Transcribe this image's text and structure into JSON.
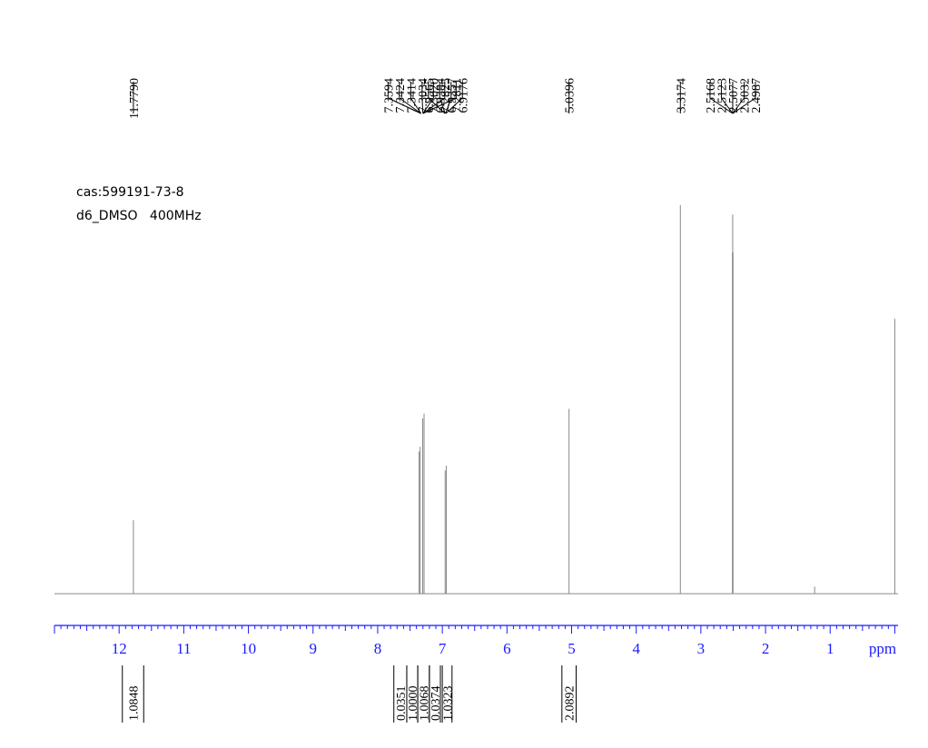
{
  "sample_info": {
    "line1": "cas:599191-73-8",
    "line2": "d6_DMSO   400MHz"
  },
  "chart_data": {
    "type": "line",
    "title": "",
    "xlabel": "ppm",
    "ylabel": "",
    "x_reversed": true,
    "xlim": [
      13.0,
      -0.05
    ],
    "x_ticks": [
      12,
      11,
      10,
      9,
      8,
      7,
      6,
      5,
      4,
      3,
      2,
      1
    ],
    "x_tick_labels": [
      "12",
      "11",
      "10",
      "9",
      "8",
      "7",
      "6",
      "5",
      "4",
      "3",
      "2",
      "1"
    ],
    "y_range": [
      0,
      1
    ],
    "grid": false,
    "colors": {
      "spectrum": "#888888",
      "axis": "#1a1aff",
      "labels": "#000000"
    },
    "peaks": [
      {
        "ppm": 11.779,
        "height": 0.155
      },
      {
        "ppm": 7.3594,
        "height": 0.3
      },
      {
        "ppm": 7.3424,
        "height": 0.31
      },
      {
        "ppm": 7.3034,
        "height": 0.37
      },
      {
        "ppm": 7.2825,
        "height": 0.38
      },
      {
        "ppm": 6.9565,
        "height": 0.26
      },
      {
        "ppm": 6.9384,
        "height": 0.27
      },
      {
        "ppm": 5.0396,
        "height": 0.39
      },
      {
        "ppm": 3.3174,
        "height": 0.82
      },
      {
        "ppm": 2.5123,
        "height": 0.72
      },
      {
        "ppm": 2.5077,
        "height": 0.8
      },
      {
        "ppm": 2.5032,
        "height": 0.72
      },
      {
        "ppm": 1.24,
        "height": 0.015
      },
      {
        "ppm": 0.0,
        "height": 0.58
      }
    ],
    "peak_label_groups": [
      {
        "labels": [
          "11.7790"
        ],
        "targets": [
          11.779
        ]
      },
      {
        "labels": [
          "7.3594",
          "7.3424",
          "7.3414",
          "7.3034",
          "7.3020",
          "7.2825",
          "7.2811"
        ],
        "targets": [
          7.33,
          7.33,
          7.33,
          7.3,
          7.3,
          7.3,
          7.3
        ]
      },
      {
        "labels": [
          "6.9565",
          "6.9384",
          "6.9357",
          "6.9176"
        ],
        "targets": [
          6.96,
          6.955,
          6.95,
          6.945
        ]
      },
      {
        "labels": [
          "5.0396"
        ],
        "targets": [
          5.0396
        ]
      },
      {
        "labels": [
          "3.3174"
        ],
        "targets": [
          3.3174
        ]
      },
      {
        "labels": [
          "2.5168",
          "2.5123",
          "2.5077",
          "2.5032",
          "2.4987"
        ],
        "targets": [
          2.5077,
          2.5077,
          2.5077,
          2.5077,
          2.5077
        ]
      }
    ],
    "integrals": [
      {
        "value": "1.0848",
        "range": [
          11.95,
          11.62
        ]
      },
      {
        "value": "0.0351",
        "range": [
          7.75,
          7.55
        ]
      },
      {
        "value": "1.0000",
        "range": [
          7.55,
          7.38
        ]
      },
      {
        "value": "1.0068",
        "range": [
          7.38,
          7.2
        ]
      },
      {
        "value": "0.0374",
        "range": [
          7.2,
          7.03
        ]
      },
      {
        "value": "1.0323",
        "range": [
          7.0,
          6.85
        ]
      },
      {
        "value": "2.0892",
        "range": [
          5.15,
          4.93
        ]
      }
    ]
  }
}
